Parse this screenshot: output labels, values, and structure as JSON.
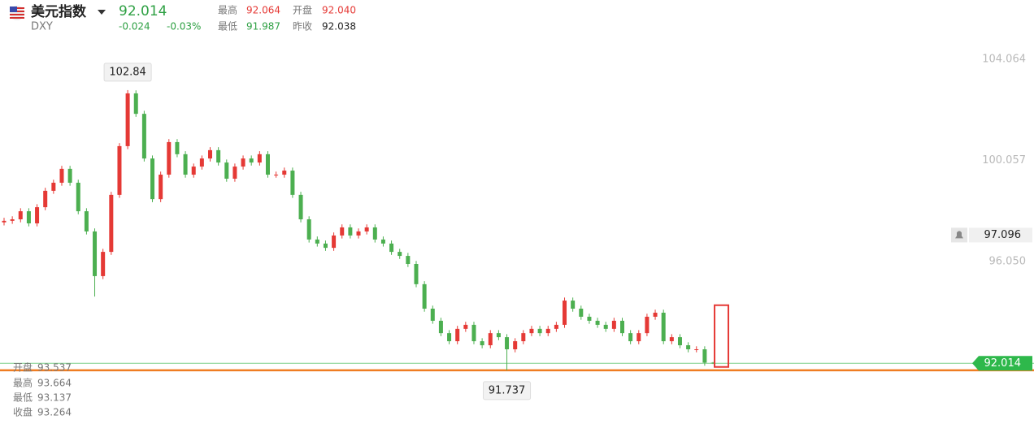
{
  "chart_data": {
    "type": "candlestick",
    "header": {
      "name": "美元指数",
      "symbol": "DXY",
      "last": "92.014",
      "change": "-0.024",
      "change_percent": "-0.03%",
      "stats": [
        [
          "最高",
          "92.064"
        ],
        [
          "开盘",
          "92.040"
        ],
        [
          "最低",
          "91.987"
        ],
        [
          "昨收",
          "92.038"
        ]
      ]
    },
    "legend_ohlc": [
      [
        "开盘",
        "93.537"
      ],
      [
        "最高",
        "93.664"
      ],
      [
        "最低",
        "93.137"
      ],
      [
        "收盘",
        "93.264"
      ]
    ],
    "up_color": "#e53935",
    "down_color": "#4caf50",
    "ylim": [
      89.61,
      106.41
    ],
    "yticks": [
      104.064,
      100.057,
      {
        "value": 96.05,
        "label": "96.050"
      }
    ],
    "grid": false,
    "alert": 97.096,
    "open": [
      97.6,
      97.66,
      97.72,
      98.04,
      97.56,
      98.2,
      98.85,
      99.17,
      99.72,
      99.17,
      98.04,
      97.24,
      95.47,
      96.43,
      98.69,
      100.62,
      102.71,
      101.9,
      100.13,
      98.52,
      99.49,
      100.78,
      100.3,
      99.49,
      99.81,
      100.13,
      100.46,
      99.97,
      99.33,
      99.81,
      100.13,
      99.97,
      100.3,
      99.49,
      99.49,
      99.65,
      98.69,
      97.72,
      96.92,
      96.76,
      96.59,
      97.08,
      97.4,
      97.08,
      97.24,
      97.4,
      96.92,
      96.76,
      96.43,
      96.27,
      95.95,
      95.15,
      94.18,
      93.7,
      93.21,
      92.89,
      93.38,
      93.54,
      92.89,
      92.73,
      93.21,
      93.05,
      92.57,
      92.89,
      93.21,
      93.38,
      93.21,
      93.38,
      93.54,
      94.5,
      94.18,
      93.86,
      93.7,
      93.54,
      93.38,
      93.7,
      93.21,
      92.89,
      93.21,
      93.86,
      94.02,
      92.89,
      93.05,
      92.73,
      92.57,
      92.57,
      92.04
    ],
    "high": [
      97.78,
      97.84,
      98.16,
      98.16,
      98.32,
      98.97,
      99.29,
      99.84,
      99.84,
      99.29,
      98.16,
      97.36,
      96.55,
      98.81,
      100.74,
      102.84,
      102.83,
      102.02,
      100.25,
      99.61,
      100.9,
      100.9,
      100.42,
      99.93,
      100.25,
      100.58,
      100.58,
      100.09,
      99.93,
      100.25,
      100.25,
      100.42,
      100.42,
      99.61,
      99.77,
      99.77,
      98.81,
      97.84,
      97.04,
      96.88,
      97.2,
      97.52,
      97.52,
      97.36,
      97.52,
      97.52,
      97.04,
      96.88,
      96.55,
      96.39,
      96.07,
      95.27,
      94.3,
      93.82,
      93.33,
      93.5,
      93.66,
      93.66,
      93.01,
      93.33,
      93.33,
      93.17,
      93.01,
      93.33,
      93.5,
      93.5,
      93.5,
      93.66,
      94.62,
      94.62,
      94.3,
      93.98,
      93.82,
      93.66,
      93.82,
      93.82,
      93.33,
      93.33,
      93.98,
      94.14,
      94.14,
      93.17,
      93.17,
      92.85,
      92.69,
      92.69,
      92.064
    ],
    "low": [
      97.48,
      97.54,
      97.6,
      97.44,
      97.44,
      98.08,
      98.73,
      99.05,
      99.05,
      97.92,
      97.12,
      94.66,
      95.35,
      96.31,
      98.57,
      100.5,
      101.78,
      100.01,
      98.4,
      98.4,
      99.37,
      100.18,
      99.37,
      99.37,
      99.69,
      100.01,
      99.85,
      99.21,
      99.21,
      99.69,
      99.85,
      99.85,
      99.37,
      99.37,
      99.37,
      98.57,
      97.6,
      96.8,
      96.64,
      96.47,
      96.47,
      96.96,
      96.96,
      96.96,
      97.12,
      96.8,
      96.64,
      96.31,
      96.15,
      95.83,
      95.03,
      94.06,
      93.58,
      93.09,
      92.77,
      92.77,
      93.26,
      92.77,
      92.61,
      92.61,
      92.93,
      91.737,
      92.45,
      92.77,
      93.09,
      93.09,
      93.09,
      93.26,
      93.42,
      94.06,
      93.74,
      93.58,
      93.42,
      93.26,
      93.26,
      93.09,
      92.77,
      92.77,
      93.09,
      93.74,
      92.77,
      92.77,
      92.61,
      92.45,
      92.45,
      91.92,
      91.987
    ],
    "close": [
      97.66,
      97.72,
      98.04,
      97.56,
      98.2,
      98.85,
      99.17,
      99.72,
      99.17,
      98.04,
      97.24,
      95.47,
      96.43,
      98.69,
      100.62,
      102.71,
      101.9,
      100.13,
      98.52,
      99.49,
      100.78,
      100.3,
      99.49,
      99.81,
      100.13,
      100.46,
      99.97,
      99.33,
      99.81,
      100.13,
      99.97,
      100.3,
      99.49,
      99.49,
      99.65,
      98.69,
      97.72,
      96.92,
      96.76,
      96.59,
      97.08,
      97.4,
      97.08,
      97.24,
      97.4,
      96.92,
      96.76,
      96.43,
      96.27,
      95.95,
      95.15,
      94.18,
      93.7,
      93.21,
      92.89,
      93.38,
      93.54,
      92.89,
      92.73,
      93.21,
      93.05,
      92.57,
      92.89,
      93.21,
      93.38,
      93.21,
      93.38,
      93.54,
      94.5,
      94.18,
      93.86,
      93.7,
      93.54,
      93.38,
      93.7,
      93.21,
      92.89,
      93.21,
      93.86,
      94.02,
      92.89,
      93.05,
      92.73,
      92.57,
      92.57,
      92.04,
      92.014
    ]
  }
}
